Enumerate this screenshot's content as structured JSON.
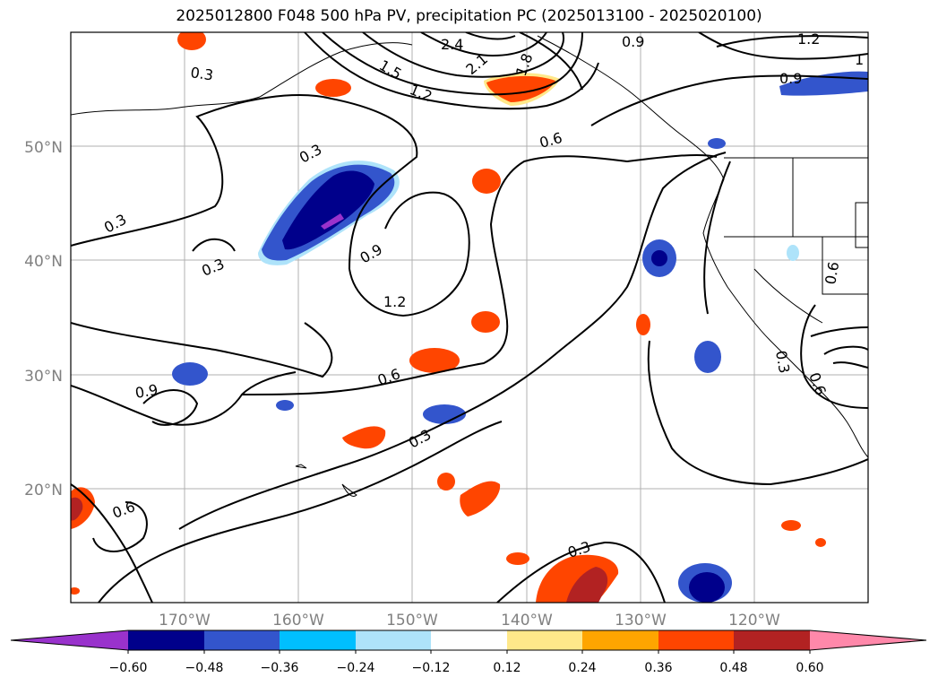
{
  "title": "2025012800 F048 500 hPa PV, precipitation PC (2025013100 - 2025020100)",
  "map": {
    "lat_labels": [
      "50°N",
      "40°N",
      "30°N",
      "20°N"
    ],
    "lon_labels": [
      "170°W",
      "160°W",
      "150°W",
      "140°W",
      "130°W",
      "120°W"
    ],
    "contour_labels": [
      "0.3",
      "0.3",
      "0.3",
      "0.3",
      "0.3",
      "0.3",
      "0.3",
      "0.6",
      "0.6",
      "0.6",
      "0.6",
      "0.6",
      "0.9",
      "0.9",
      "0.9",
      "0.9",
      "1.2",
      "1.2",
      "1.2",
      "1.5",
      "2.1",
      "2.4",
      "1",
      "1.8"
    ]
  },
  "colorbar": {
    "ticks": [
      "−0.60",
      "−0.48",
      "−0.36",
      "−0.24",
      "−0.12",
      "0.12",
      "0.24",
      "0.36",
      "0.48",
      "0.60"
    ],
    "colors": [
      "#9932CC",
      "#00008B",
      "#3355CC",
      "#00BFFF",
      "#AEE3FA",
      "#FFFFFF",
      "#FFE88A",
      "#FFA500",
      "#FF4500",
      "#B22222",
      "#FF88AA"
    ]
  }
}
